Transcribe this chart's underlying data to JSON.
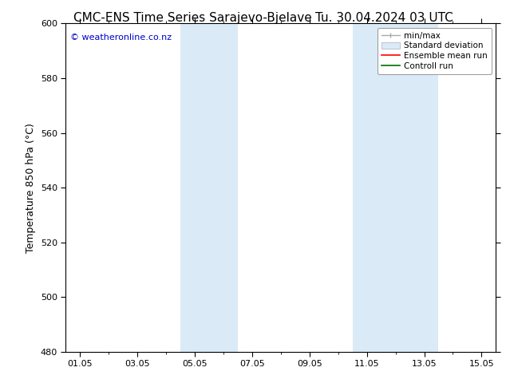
{
  "title_left": "CMC-ENS Time Series Sarajevo-Bjelave",
  "title_right": "Tu. 30.04.2024 03 UTC",
  "ylabel": "Temperature 850 hPa (°C)",
  "ylim": [
    480,
    600
  ],
  "yticks": [
    480,
    500,
    520,
    540,
    560,
    580,
    600
  ],
  "xtick_labels": [
    "01.05",
    "03.05",
    "05.05",
    "07.05",
    "09.05",
    "11.05",
    "13.05",
    "15.05"
  ],
  "xtick_positions": [
    0,
    2,
    4,
    6,
    8,
    10,
    12,
    14
  ],
  "xlim": [
    -0.5,
    14.5
  ],
  "shaded_bands": [
    {
      "xstart": 3.5,
      "xend": 5.5
    },
    {
      "xstart": 9.5,
      "xend": 12.5
    }
  ],
  "shade_color": "#dbeaf7",
  "background_color": "#ffffff",
  "plot_bg_color": "#ffffff",
  "watermark_text": "© weatheronline.co.nz",
  "watermark_color": "#0000cc",
  "watermark_fontsize": 8,
  "legend_items": [
    {
      "label": "min/max",
      "color": "#aaaaaa",
      "style": "line_with_caps"
    },
    {
      "label": "Standard deviation",
      "color": "#dbeaf7",
      "style": "filled_box"
    },
    {
      "label": "Ensemble mean run",
      "color": "#ff0000",
      "style": "line"
    },
    {
      "label": "Controll run",
      "color": "#007000",
      "style": "line"
    }
  ],
  "title_fontsize": 11,
  "axis_label_fontsize": 9,
  "tick_fontsize": 8,
  "legend_fontsize": 7.5
}
